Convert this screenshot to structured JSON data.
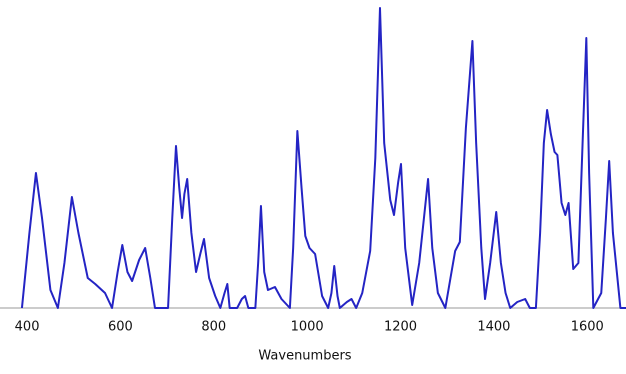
{
  "chart_data": {
    "type": "line",
    "xlabel": "Wavenumbers",
    "x": [
      389,
      405,
      419,
      432,
      450,
      466,
      480,
      496,
      510,
      530,
      546,
      567,
      582,
      594,
      604,
      615,
      625,
      640,
      653,
      664,
      674,
      702,
      711,
      719,
      726,
      732,
      737,
      743,
      752,
      762,
      771,
      779,
      790,
      803,
      814,
      823,
      829,
      834,
      850,
      860,
      867,
      874,
      889,
      895,
      901,
      908,
      916,
      931,
      945,
      963,
      970,
      979,
      988,
      996,
      1005,
      1017,
      1032,
      1045,
      1052,
      1058,
      1065,
      1070,
      1085,
      1095,
      1105,
      1118,
      1135,
      1146,
      1156,
      1165,
      1178,
      1186,
      1195,
      1201,
      1210,
      1225,
      1240,
      1259,
      1268,
      1280,
      1296,
      1307,
      1317,
      1327,
      1340,
      1354,
      1362,
      1373,
      1381,
      1392,
      1405,
      1415,
      1425,
      1435,
      1450,
      1467,
      1477,
      1490,
      1499,
      1507,
      1514,
      1522,
      1530,
      1536,
      1545,
      1553,
      1560,
      1570,
      1581,
      1590,
      1598,
      1604,
      1613,
      1630,
      1640,
      1647,
      1655,
      1671,
      1683
    ],
    "values": [
      0,
      25,
      45,
      30,
      6,
      0,
      15,
      37,
      25,
      10,
      8,
      5,
      0,
      12,
      21,
      12,
      9,
      16,
      20,
      10,
      0,
      0,
      30,
      54,
      40,
      30,
      38,
      43,
      25,
      12,
      18,
      23,
      10,
      4,
      0,
      5,
      8,
      0,
      0,
      3,
      4,
      0,
      0,
      15,
      34,
      12,
      6,
      7,
      3,
      0,
      20,
      59,
      40,
      24,
      20,
      18,
      4,
      0,
      5,
      14,
      4,
      0,
      2,
      3,
      0,
      5,
      19,
      50,
      100,
      55,
      36,
      31,
      42,
      48,
      20,
      1,
      15,
      43,
      20,
      5,
      0,
      10,
      19,
      22,
      60,
      89,
      55,
      20,
      3,
      15,
      32,
      15,
      5,
      0,
      2,
      3,
      0,
      0,
      25,
      55,
      66,
      58,
      52,
      51,
      35,
      31,
      35,
      13,
      15,
      55,
      90,
      45,
      0,
      5,
      30,
      49,
      25,
      0,
      0
    ],
    "color": "#2424c4",
    "xlim": [
      342,
      1683
    ],
    "xticks": [
      400,
      600,
      800,
      1000,
      1200,
      1400,
      1600
    ],
    "ylim": [
      0,
      100
    ],
    "grid": false
  }
}
